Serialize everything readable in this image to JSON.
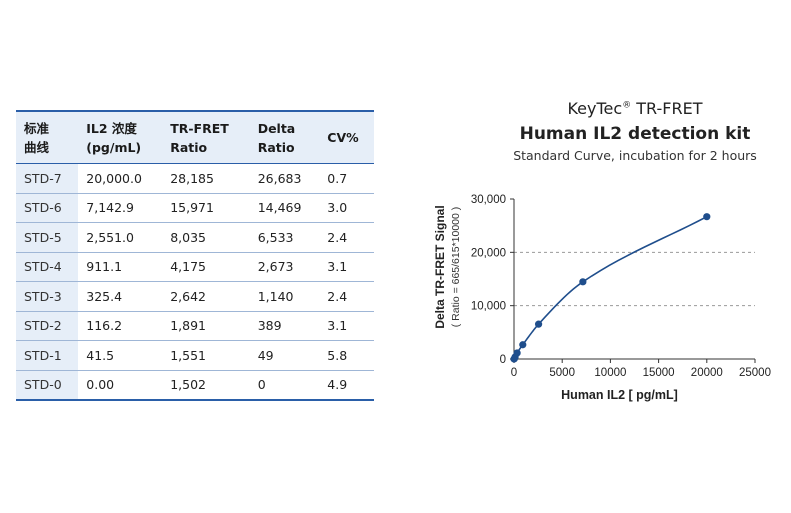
{
  "table": {
    "headers": [
      [
        "标准",
        "曲线"
      ],
      [
        "IL2 浓度",
        "(pg/mL)"
      ],
      [
        "TR-FRET",
        "Ratio"
      ],
      [
        "Delta",
        "Ratio"
      ],
      [
        "CV%"
      ]
    ],
    "rows": [
      [
        "STD-7",
        "20,000.0",
        "28,185",
        "26,683",
        "0.7"
      ],
      [
        "STD-6",
        "7,142.9",
        "15,971",
        "14,469",
        "3.0"
      ],
      [
        "STD-5",
        "2,551.0",
        "8,035",
        "6,533",
        "2.4"
      ],
      [
        "STD-4",
        "911.1",
        "4,175",
        "2,673",
        "3.1"
      ],
      [
        "STD-3",
        "325.4",
        "2,642",
        "1,140",
        "2.4"
      ],
      [
        "STD-2",
        "116.2",
        "1,891",
        "389",
        "3.1"
      ],
      [
        "STD-1",
        "41.5",
        "1,551",
        "49",
        "5.8"
      ],
      [
        "STD-0",
        "0.00",
        "1,502",
        "0",
        "4.9"
      ]
    ]
  },
  "chart_header": {
    "brand": "KeyTec",
    "brand_mark": "®",
    "brand_suffix": " TR-FRET",
    "title": "Human IL2 detection kit",
    "subtitle": "Standard Curve, incubation for 2 hours"
  },
  "chart_data": {
    "type": "scatter",
    "x": [
      20000,
      7142.9,
      2551.0,
      911.1,
      325.4,
      116.2,
      41.5,
      0
    ],
    "y": [
      26683,
      14469,
      6533,
      2673,
      1140,
      389,
      49,
      0
    ],
    "fit_curve": true,
    "xlim": [
      0,
      25000
    ],
    "ylim": [
      0,
      30000
    ],
    "xticks": [
      0,
      5000,
      10000,
      15000,
      20000,
      25000
    ],
    "xtick_labels": [
      "0",
      "5000",
      "10000",
      "15000",
      "20000",
      "25000"
    ],
    "yticks": [
      0,
      10000,
      20000,
      30000
    ],
    "ytick_labels": [
      "0",
      "10,000",
      "20,000",
      "30,000"
    ],
    "xlabel": "Human IL2 [ pg/mL]",
    "ylabel": "Delta TR-FRET Signal",
    "ylabel_sub": "( Ratio = 665/615*10000 )",
    "grid": "dashed horizontal at 10,000 and 20,000",
    "colors": {
      "point": "#1f4e8c",
      "line": "#1f4e8c",
      "grid": "#9a9a9a"
    }
  }
}
